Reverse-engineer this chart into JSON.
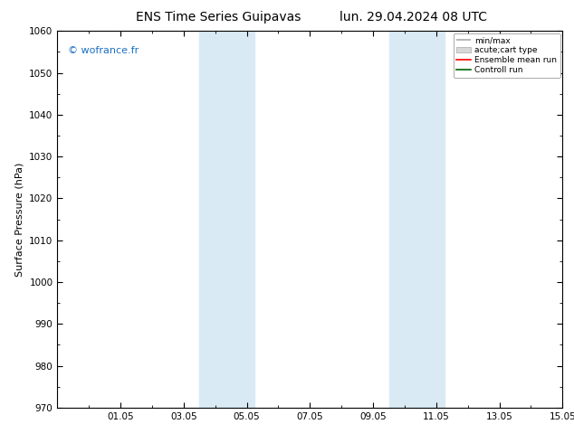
{
  "title_left": "ENS Time Series Guipavas",
  "title_right": "lun. 29.04.2024 08 UTC",
  "ylabel": "Surface Pressure (hPa)",
  "ylim": [
    970,
    1060
  ],
  "yticks": [
    970,
    980,
    990,
    1000,
    1010,
    1020,
    1030,
    1040,
    1050,
    1060
  ],
  "xlim": [
    0,
    16
  ],
  "xtick_positions": [
    2,
    4,
    6,
    8,
    10,
    12,
    14,
    16
  ],
  "xtick_labels": [
    "01.05",
    "03.05",
    "05.05",
    "07.05",
    "09.05",
    "11.05",
    "13.05",
    "15.05"
  ],
  "bg_color": "#ffffff",
  "plot_bg_color": "#ffffff",
  "shaded_bands": [
    {
      "xmin": 4.5,
      "xmax": 5.5
    },
    {
      "xmin": 5.5,
      "xmax": 6.25
    },
    {
      "xmin": 10.5,
      "xmax": 11.5
    },
    {
      "xmin": 11.5,
      "xmax": 12.25
    }
  ],
  "band_color": "#daeaf5",
  "watermark": "© wofrance.fr",
  "watermark_color": "#1a6fc4",
  "title_fontsize": 10,
  "tick_fontsize": 7.5,
  "ylabel_fontsize": 8
}
